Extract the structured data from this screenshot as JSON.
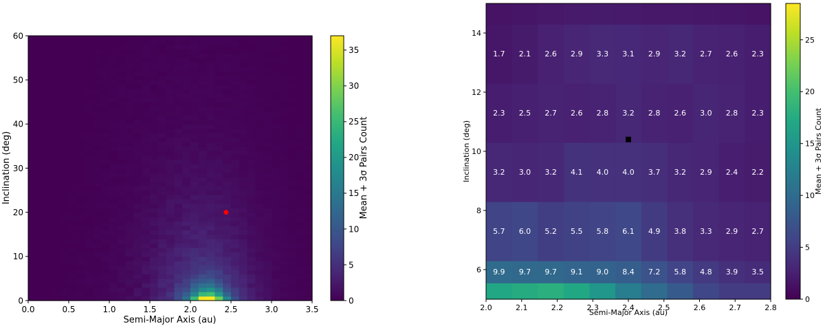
{
  "colorscale": [
    "#440154",
    "#482475",
    "#414487",
    "#355f8d",
    "#2a788e",
    "#21908d",
    "#22a884",
    "#42be71",
    "#7ad151",
    "#bddf26",
    "#fde725"
  ],
  "chart_data": [
    {
      "type": "heatmap",
      "xlabel": "Semi-Major Axis (au)",
      "ylabel": "Inclination (deg)",
      "xlim": [
        0.0,
        3.5
      ],
      "ylim": [
        0,
        60
      ],
      "xticks": [
        "0.0",
        "0.5",
        "1.0",
        "1.5",
        "2.0",
        "2.5",
        "3.0",
        "3.5"
      ],
      "xtick_values": [
        0.0,
        0.5,
        1.0,
        1.5,
        2.0,
        2.5,
        3.0,
        3.5
      ],
      "yticks": [
        "0",
        "10",
        "20",
        "30",
        "40",
        "50",
        "60"
      ],
      "ytick_values": [
        0,
        10,
        20,
        30,
        40,
        50,
        60
      ],
      "colorbar_label": "Mean + 3σ Pairs Count",
      "colorbar_range": [
        0,
        37
      ],
      "colorbar_ticks": [
        "0",
        "5",
        "10",
        "15",
        "20",
        "25",
        "30",
        "35"
      ],
      "colorbar_tick_values": [
        0,
        5,
        10,
        15,
        20,
        25,
        30,
        35
      ],
      "marker": {
        "x": 2.44,
        "y": 20,
        "color": "#ff0000"
      },
      "grid": false
    },
    {
      "type": "heatmap",
      "xlabel": "Semi-Major Axis (au)",
      "ylabel": "Inclination (deg)",
      "xlim": [
        2.0,
        2.8
      ],
      "ylim": [
        5.0,
        15.0
      ],
      "xticks": [
        "2.0",
        "2.1",
        "2.2",
        "2.3",
        "2.4",
        "2.5",
        "2.6",
        "2.7",
        "2.8"
      ],
      "xtick_values": [
        2.0,
        2.1,
        2.2,
        2.3,
        2.4,
        2.5,
        2.6,
        2.7,
        2.8
      ],
      "yticks": [
        "6",
        "8",
        "10",
        "12",
        "14"
      ],
      "ytick_values": [
        6,
        8,
        10,
        12,
        14
      ],
      "colorbar_label": "Mean + 3σ Pairs Count",
      "colorbar_range": [
        0,
        28.5
      ],
      "colorbar_ticks": [
        "0",
        "5",
        "10",
        "15",
        "20",
        "25"
      ],
      "colorbar_tick_values": [
        0,
        5,
        10,
        15,
        20,
        25
      ],
      "marker": {
        "x": 2.4,
        "y": 10.4,
        "color": "#000000"
      },
      "row_bounds": [
        5.0,
        5.55,
        6.3,
        8.3,
        10.3,
        12.3,
        14.3,
        15.0
      ],
      "rows": [
        {
          "values": [
            17.0,
            17.5,
            18.0,
            17.0,
            15.0,
            12.0,
            10.0,
            8.0,
            6.0,
            5.0,
            5.0
          ],
          "labels": [
            "",
            "",
            "",
            "",
            "",
            "",
            "",
            "",
            "",
            "",
            ""
          ]
        },
        {
          "values": [
            9.9,
            9.7,
            9.7,
            9.1,
            9.0,
            8.4,
            7.2,
            5.8,
            4.8,
            3.9,
            3.5
          ],
          "labels": [
            "9.9",
            "9.7",
            "9.7",
            "9.1",
            "9.0",
            "8.4",
            "7.2",
            "5.8",
            "4.8",
            "3.9",
            "3.5"
          ]
        },
        {
          "values": [
            5.7,
            6.0,
            5.2,
            5.5,
            5.8,
            6.1,
            4.9,
            3.8,
            3.3,
            2.9,
            2.7
          ],
          "labels": [
            "5.7",
            "6.0",
            "5.2",
            "5.5",
            "5.8",
            "6.1",
            "4.9",
            "3.8",
            "3.3",
            "2.9",
            "2.7"
          ]
        },
        {
          "values": [
            3.2,
            3.0,
            3.2,
            4.1,
            4.0,
            4.0,
            3.7,
            3.2,
            2.9,
            2.4,
            2.2
          ],
          "labels": [
            "3.2",
            "3.0",
            "3.2",
            "4.1",
            "4.0",
            "4.0",
            "3.7",
            "3.2",
            "2.9",
            "2.4",
            "2.2"
          ]
        },
        {
          "values": [
            2.3,
            2.5,
            2.7,
            2.6,
            2.8,
            3.2,
            2.8,
            2.6,
            3.0,
            2.8,
            2.3
          ],
          "labels": [
            "2.3",
            "2.5",
            "2.7",
            "2.6",
            "2.8",
            "3.2",
            "2.8",
            "2.6",
            "3.0",
            "2.8",
            "2.3"
          ]
        },
        {
          "values": [
            1.7,
            2.1,
            2.6,
            2.9,
            3.3,
            3.1,
            2.9,
            3.2,
            2.7,
            2.6,
            2.3
          ],
          "labels": [
            "1.7",
            "2.1",
            "2.6",
            "2.9",
            "3.3",
            "3.1",
            "2.9",
            "3.2",
            "2.7",
            "2.6",
            "2.3"
          ]
        },
        {
          "values": [
            1.5,
            1.6,
            1.9,
            2.0,
            2.1,
            2.0,
            1.8,
            1.9,
            1.7,
            1.6,
            1.5
          ],
          "labels": [
            "",
            "",
            "",
            "",
            "",
            "",
            "",
            "",
            "",
            "",
            ""
          ]
        }
      ]
    }
  ]
}
